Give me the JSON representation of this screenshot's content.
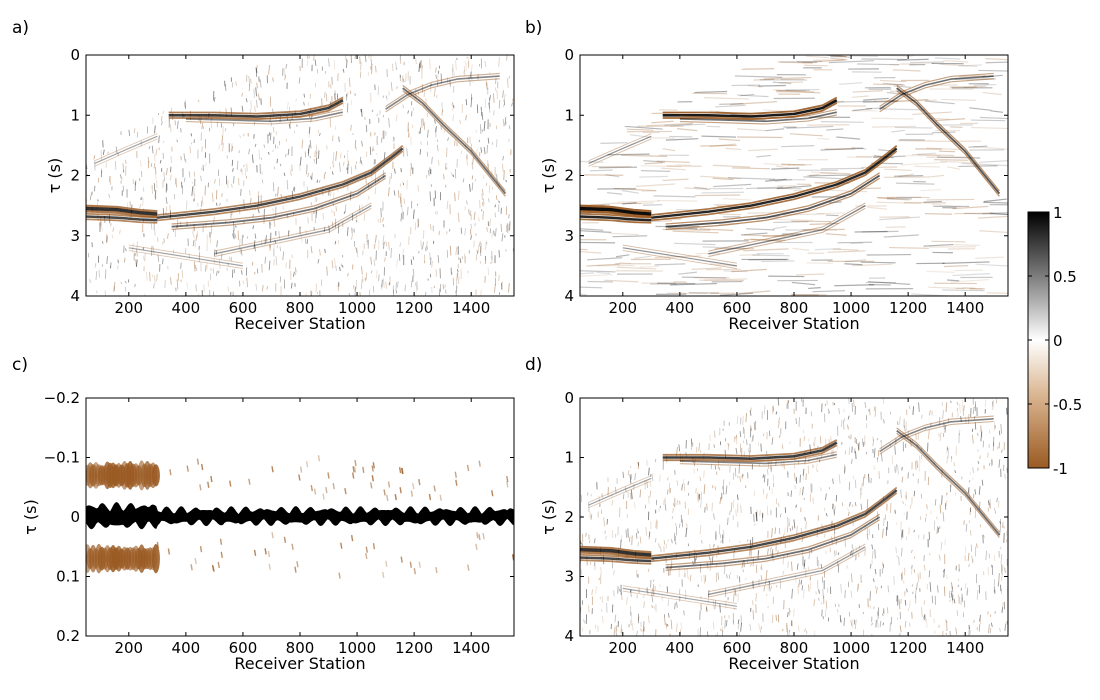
{
  "colors": {
    "negative": "#9a5a22",
    "zero": "#ffffff",
    "positive": "#000000"
  },
  "colorbar": {
    "ticks": [
      1,
      0.5,
      0,
      -0.5,
      -1
    ],
    "labels": [
      "1",
      "0.5",
      "0",
      "-0.5",
      "-1"
    ],
    "range": [
      -1,
      1
    ]
  },
  "chart_data": [
    {
      "panel": "a)",
      "type": "heatmap",
      "xlabel": "Receiver Station",
      "ylabel": "τ (s)",
      "xlim": [
        50,
        1550
      ],
      "ylim": [
        0,
        4
      ],
      "xticks": [
        200,
        400,
        600,
        800,
        1000,
        1200,
        1400
      ],
      "yticks": [
        0,
        1,
        2,
        3,
        4
      ],
      "ytick_labels": [
        "0",
        "1",
        "2",
        "3",
        "4"
      ],
      "description_values": {
        "strong_event_tau": 2.62,
        "event_tau_600_900": 1.0
      }
    },
    {
      "panel": "b)",
      "type": "heatmap",
      "xlabel": "Receiver Station",
      "ylabel": "τ (s)",
      "xlim": [
        50,
        1550
      ],
      "ylim": [
        0,
        4
      ],
      "xticks": [
        200,
        400,
        600,
        800,
        1000,
        1200,
        1400
      ],
      "yticks": [
        0,
        1,
        2,
        3,
        4
      ],
      "ytick_labels": [
        "0",
        "1",
        "2",
        "3",
        "4"
      ],
      "description_values": {
        "strong_event_tau": 2.62,
        "event_tau_600_900": 1.0
      }
    },
    {
      "panel": "c)",
      "type": "heatmap",
      "xlabel": "Receiver Station",
      "ylabel": "τ (s)",
      "xlim": [
        50,
        1550
      ],
      "ylim": [
        -0.2,
        0.2
      ],
      "xticks": [
        200,
        400,
        600,
        800,
        1000,
        1200,
        1400
      ],
      "yticks": [
        -0.2,
        -0.1,
        0,
        0.1,
        0.2
      ],
      "ytick_labels": [
        "−0.2",
        "−0.1",
        "0",
        "0.1",
        "0.2"
      ],
      "description_values": {
        "wavelet_center_tau": 0.0,
        "sidelobe_tau": [
          -0.07,
          0.07
        ]
      }
    },
    {
      "panel": "d)",
      "type": "heatmap",
      "xlabel": "Receiver Station",
      "ylabel": "τ (s)",
      "xlim": [
        50,
        1550
      ],
      "ylim": [
        0,
        4
      ],
      "xticks": [
        200,
        400,
        600,
        800,
        1000,
        1200,
        1400
      ],
      "yticks": [
        0,
        1,
        2,
        3,
        4
      ],
      "ytick_labels": [
        "0",
        "1",
        "2",
        "3",
        "4"
      ],
      "description_values": {
        "strong_event_tau": 2.62,
        "event_tau_600_900": 1.0
      }
    }
  ]
}
